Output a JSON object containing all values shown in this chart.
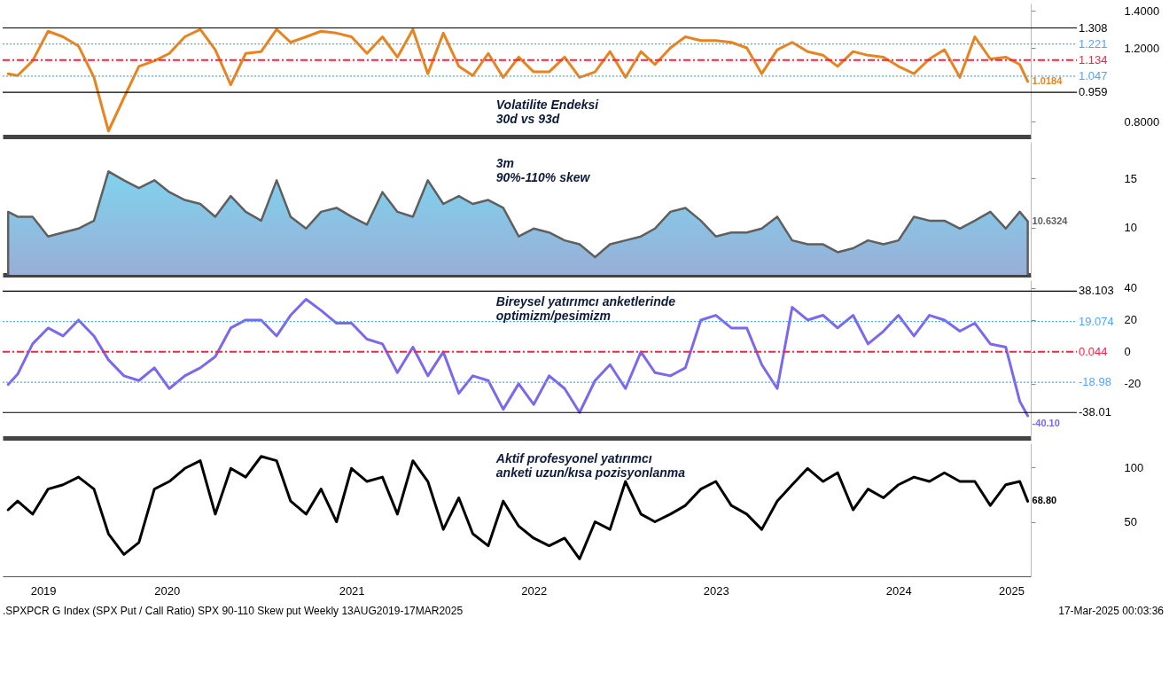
{
  "chart_data": [
    {
      "type": "line",
      "title": "Volatilite Endeksi\n30d vs 93d",
      "x": [
        "2019-08-13",
        "2019-09-01",
        "2019-10-01",
        "2019-11-01",
        "2019-12-01",
        "2020-01-01",
        "2020-02-01",
        "2020-03-01",
        "2020-04-01",
        "2020-05-01",
        "2020-06-01",
        "2020-07-01",
        "2020-08-01",
        "2020-09-01",
        "2020-10-01",
        "2020-11-01",
        "2020-12-01",
        "2021-01-01",
        "2021-02-01",
        "2021-03-01",
        "2021-04-01",
        "2021-05-01",
        "2021-06-01",
        "2021-07-01",
        "2021-08-01",
        "2021-09-01",
        "2021-10-01",
        "2021-11-01",
        "2021-12-01",
        "2022-01-01",
        "2022-02-01",
        "2022-03-01",
        "2022-04-01",
        "2022-05-01",
        "2022-06-01",
        "2022-07-01",
        "2022-08-01",
        "2022-09-01",
        "2022-10-01",
        "2022-11-01",
        "2022-12-01",
        "2023-01-01",
        "2023-02-01",
        "2023-03-01",
        "2023-04-01",
        "2023-05-01",
        "2023-06-01",
        "2023-07-01",
        "2023-08-01",
        "2023-09-01",
        "2023-10-01",
        "2023-11-01",
        "2023-12-01",
        "2024-01-01",
        "2024-02-01",
        "2024-03-01",
        "2024-04-01",
        "2024-05-01",
        "2024-06-01",
        "2024-07-01",
        "2024-08-01",
        "2024-09-01",
        "2024-10-01",
        "2024-11-01",
        "2024-12-01",
        "2025-01-01",
        "2025-02-01",
        "2025-03-01",
        "2025-03-17"
      ],
      "series": [
        {
          "color": "#e8841f",
          "values": [
            1.06,
            1.05,
            1.13,
            1.29,
            1.26,
            1.21,
            1.04,
            0.75,
            0.93,
            1.1,
            1.13,
            1.17,
            1.26,
            1.3,
            1.19,
            1.0,
            1.17,
            1.18,
            1.3,
            1.23,
            1.26,
            1.29,
            1.28,
            1.26,
            1.17,
            1.26,
            1.15,
            1.3,
            1.06,
            1.28,
            1.1,
            1.05,
            1.17,
            1.04,
            1.15,
            1.07,
            1.07,
            1.15,
            1.04,
            1.07,
            1.18,
            1.04,
            1.18,
            1.11,
            1.2,
            1.26,
            1.24,
            1.24,
            1.23,
            1.2,
            1.06,
            1.19,
            1.23,
            1.18,
            1.16,
            1.1,
            1.18,
            1.16,
            1.15,
            1.1,
            1.06,
            1.14,
            1.19,
            1.04,
            1.26,
            1.14,
            1.15,
            1.11,
            1.0184
          ]
        }
      ],
      "xlim": [
        "2019-08-02",
        "2025-03-23"
      ],
      "ylim": [
        0.72,
        1.44
      ],
      "yticks": [
        {
          "value": 0.8,
          "label": "0.8000"
        },
        {
          "value": 1.2,
          "label": "1.2000"
        },
        {
          "value": 1.4,
          "label": "1.4000"
        }
      ],
      "ref_lines": [
        {
          "axis": "y",
          "value": 1.308,
          "label": "1.308",
          "color": "#000000",
          "line_style": "solid"
        },
        {
          "axis": "y",
          "value": 1.221,
          "label": "1.221",
          "color": "#4da6ff",
          "line_style": "dotted"
        },
        {
          "axis": "y",
          "value": 1.134,
          "label": "1.134",
          "color": "#ff2040",
          "line_style": "dashed"
        },
        {
          "axis": "y",
          "value": 1.047,
          "label": "1.047",
          "color": "#4da6ff",
          "line_style": "dotted"
        },
        {
          "axis": "y",
          "value": 0.959,
          "label": "0.959",
          "color": "#000000",
          "line_style": "solid"
        }
      ],
      "annotations": [
        {
          "text": "1.0184",
          "x": "2025-03-17",
          "y": 1.0184
        }
      ],
      "tick_labels": "y",
      "grid": false,
      "legend": false,
      "marker": "none",
      "line_style": "solid"
    },
    {
      "type": "area",
      "title": "3m\n90%-110% skew",
      "x": [
        "2019-08-13",
        "2019-09-01",
        "2019-10-01",
        "2019-11-01",
        "2019-12-01",
        "2020-01-01",
        "2020-02-01",
        "2020-03-01",
        "2020-04-01",
        "2020-05-01",
        "2020-06-01",
        "2020-07-01",
        "2020-08-01",
        "2020-09-01",
        "2020-10-01",
        "2020-11-01",
        "2020-12-01",
        "2021-01-01",
        "2021-02-01",
        "2021-03-01",
        "2021-04-01",
        "2021-05-01",
        "2021-06-01",
        "2021-07-01",
        "2021-08-01",
        "2021-09-01",
        "2021-10-01",
        "2021-11-01",
        "2021-12-01",
        "2022-01-01",
        "2022-02-01",
        "2022-03-01",
        "2022-04-01",
        "2022-05-01",
        "2022-06-01",
        "2022-07-01",
        "2022-08-01",
        "2022-09-01",
        "2022-10-01",
        "2022-11-01",
        "2022-12-01",
        "2023-01-01",
        "2023-02-01",
        "2023-03-01",
        "2023-04-01",
        "2023-05-01",
        "2023-06-01",
        "2023-07-01",
        "2023-08-01",
        "2023-09-01",
        "2023-10-01",
        "2023-11-01",
        "2023-12-01",
        "2024-01-01",
        "2024-02-01",
        "2024-03-01",
        "2024-04-01",
        "2024-05-01",
        "2024-06-01",
        "2024-07-01",
        "2024-08-01",
        "2024-09-01",
        "2024-10-01",
        "2024-11-01",
        "2024-12-01",
        "2025-01-01",
        "2025-02-01",
        "2025-03-01",
        "2025-03-17"
      ],
      "series": [
        {
          "color": "#5f5f5f",
          "values": [
            11.6,
            11.1,
            11.1,
            9.1,
            9.5,
            9.9,
            10.7,
            15.7,
            14.8,
            14.0,
            14.8,
            13.6,
            12.8,
            12.4,
            11.1,
            13.2,
            11.6,
            10.7,
            14.8,
            11.1,
            9.9,
            11.6,
            12.0,
            11.1,
            10.3,
            13.6,
            11.6,
            11.1,
            14.8,
            12.4,
            13.2,
            12.4,
            12.8,
            12.0,
            9.1,
            9.9,
            9.5,
            8.7,
            8.3,
            7.0,
            8.3,
            8.7,
            9.1,
            9.9,
            11.6,
            12.0,
            10.7,
            9.1,
            9.5,
            9.5,
            9.9,
            11.1,
            8.7,
            8.3,
            8.3,
            7.5,
            7.9,
            8.7,
            8.3,
            8.7,
            11.1,
            10.7,
            10.7,
            9.9,
            10.7,
            11.6,
            9.9,
            11.6,
            10.6324
          ]
        }
      ],
      "xlim": [
        "2019-08-02",
        "2025-03-23"
      ],
      "ylim": [
        5.2,
        18.7
      ],
      "yticks": [
        10,
        15
      ],
      "annotations": [
        {
          "text": "10.6324",
          "x": "2025-03-17",
          "y": 10.6324
        }
      ],
      "tick_labels": "y",
      "grid": false,
      "legend": false,
      "marker": "none"
    },
    {
      "type": "line",
      "title": "Bireysel yatırımcı anketlerinde\noptimizm/pesimizm",
      "x": [
        "2019-08-13",
        "2019-09-01",
        "2019-10-01",
        "2019-11-01",
        "2019-12-01",
        "2020-01-01",
        "2020-02-01",
        "2020-03-01",
        "2020-04-01",
        "2020-05-01",
        "2020-06-01",
        "2020-07-01",
        "2020-08-01",
        "2020-09-01",
        "2020-10-01",
        "2020-11-01",
        "2020-12-01",
        "2021-01-01",
        "2021-02-01",
        "2021-03-01",
        "2021-04-01",
        "2021-05-01",
        "2021-06-01",
        "2021-07-01",
        "2021-08-01",
        "2021-09-01",
        "2021-10-01",
        "2021-11-01",
        "2021-12-01",
        "2022-01-01",
        "2022-02-01",
        "2022-03-01",
        "2022-04-01",
        "2022-05-01",
        "2022-06-01",
        "2022-07-01",
        "2022-08-01",
        "2022-09-01",
        "2022-10-01",
        "2022-11-01",
        "2022-12-01",
        "2023-01-01",
        "2023-02-01",
        "2023-03-01",
        "2023-04-01",
        "2023-05-01",
        "2023-06-01",
        "2023-07-01",
        "2023-08-01",
        "2023-09-01",
        "2023-10-01",
        "2023-11-01",
        "2023-12-01",
        "2024-01-01",
        "2024-02-01",
        "2024-03-01",
        "2024-04-01",
        "2024-05-01",
        "2024-06-01",
        "2024-07-01",
        "2024-08-01",
        "2024-09-01",
        "2024-10-01",
        "2024-11-01",
        "2024-12-01",
        "2025-01-01",
        "2025-02-01",
        "2025-03-01",
        "2025-03-17"
      ],
      "series": [
        {
          "color": "#7b68ee",
          "values": [
            -20.5,
            -14,
            5,
            15,
            10,
            20,
            10,
            -5,
            -15,
            -18,
            -10,
            -23,
            -15,
            -10,
            -3,
            15,
            20,
            20,
            10,
            23,
            33,
            26,
            18,
            18,
            8,
            5,
            -13,
            3,
            -15,
            0,
            -26,
            -15,
            -18,
            -36,
            -20,
            -33,
            -15,
            -23,
            -38,
            -18,
            -8,
            -23,
            0,
            -13,
            -15,
            -10,
            20,
            23,
            15,
            15,
            -8,
            -23,
            28,
            20,
            23,
            15,
            23,
            5,
            13,
            23,
            10,
            23,
            20,
            13,
            18,
            5,
            3,
            -31,
            -40.1
          ]
        }
      ],
      "xlim": [
        "2019-08-02",
        "2025-03-23"
      ],
      "ylim": [
        -54,
        45
      ],
      "yticks": [
        -20,
        0,
        20,
        40
      ],
      "ref_lines": [
        {
          "axis": "y",
          "value": 38.103,
          "label": "38.103",
          "color": "#000000",
          "line_style": "solid"
        },
        {
          "axis": "y",
          "value": 19.074,
          "label": "19.074",
          "color": "#4da6ff",
          "line_style": "dotted"
        },
        {
          "axis": "y",
          "value": 0.044,
          "label": "0.044",
          "color": "#ff2040",
          "line_style": "dashed"
        },
        {
          "axis": "y",
          "value": -18.98,
          "label": "-18.98",
          "color": "#4da6ff",
          "line_style": "dotted"
        },
        {
          "axis": "y",
          "value": -38.01,
          "label": "-38.01",
          "color": "#000000",
          "line_style": "solid"
        }
      ],
      "annotations": [
        {
          "text": "-40.10",
          "x": "2025-03-17",
          "y": -40.1
        }
      ],
      "tick_labels": "y",
      "grid": false,
      "legend": false,
      "marker": "none",
      "line_style": "solid"
    },
    {
      "type": "line",
      "title": "Aktif profesyonel yatırımcı\nanketi uzun/kısa pozisyonlanma",
      "x": [
        "2019-08-13",
        "2019-09-01",
        "2019-10-01",
        "2019-11-01",
        "2019-12-01",
        "2020-01-01",
        "2020-02-01",
        "2020-03-01",
        "2020-04-01",
        "2020-05-01",
        "2020-06-01",
        "2020-07-01",
        "2020-08-01",
        "2020-09-01",
        "2020-10-01",
        "2020-11-01",
        "2020-12-01",
        "2021-01-01",
        "2021-02-01",
        "2021-03-01",
        "2021-04-01",
        "2021-05-01",
        "2021-06-01",
        "2021-07-01",
        "2021-08-01",
        "2021-09-01",
        "2021-10-01",
        "2021-11-01",
        "2021-12-01",
        "2022-01-01",
        "2022-02-01",
        "2022-03-01",
        "2022-04-01",
        "2022-05-01",
        "2022-06-01",
        "2022-07-01",
        "2022-08-01",
        "2022-09-01",
        "2022-10-01",
        "2022-11-01",
        "2022-12-01",
        "2023-01-01",
        "2023-02-01",
        "2023-03-01",
        "2023-04-01",
        "2023-05-01",
        "2023-06-01",
        "2023-07-01",
        "2023-08-01",
        "2023-09-01",
        "2023-10-01",
        "2023-11-01",
        "2023-12-01",
        "2024-01-01",
        "2024-02-01",
        "2024-03-01",
        "2024-04-01",
        "2024-05-01",
        "2024-06-01",
        "2024-07-01",
        "2024-08-01",
        "2024-09-01",
        "2024-10-01",
        "2024-11-01",
        "2024-12-01",
        "2025-01-01",
        "2025-02-01",
        "2025-03-01",
        "2025-03-17"
      ],
      "series": [
        {
          "color": "#000000",
          "values": [
            61,
            69,
            57,
            80,
            84,
            91,
            80,
            39,
            20,
            31,
            80,
            87,
            99,
            106,
            57,
            99,
            91,
            110,
            106,
            69,
            57,
            80,
            50,
            99,
            87,
            91,
            57,
            106,
            87,
            43,
            72,
            39,
            28,
            69,
            46,
            35,
            28,
            35,
            16,
            50,
            43,
            87,
            57,
            50,
            57,
            65,
            80,
            87,
            65,
            57,
            43,
            69,
            84,
            99,
            87,
            95,
            61,
            80,
            72,
            84,
            91,
            87,
            95,
            87,
            87,
            65,
            84,
            87,
            68.8
          ]
        }
      ],
      "xlim": [
        "2019-08-02",
        "2025-03-23"
      ],
      "ylim": [
        0,
        122
      ],
      "yticks": [
        50,
        100
      ],
      "xticks": [
        {
          "value": "2019-10-22",
          "label": "2019"
        },
        {
          "value": "2020-06-26",
          "label": "2020"
        },
        {
          "value": "2021-07-01",
          "label": "2021"
        },
        {
          "value": "2022-07-01",
          "label": "2022"
        },
        {
          "value": "2023-07-01",
          "label": "2023"
        },
        {
          "value": "2024-07-01",
          "label": "2024"
        },
        {
          "value": "2025-02-12",
          "label": "2025"
        }
      ],
      "annotations": [
        {
          "text": "68.80",
          "x": "2025-03-17",
          "y": 68.8
        },
        ".SPXPCR G Index (SPX Put / Call Ratio) SPX 90-110 Skew put  Weekly 13AUG2019-17MAR2025",
        "17-Mar-2025 00:03:36"
      ],
      "grid": false,
      "legend": false,
      "marker": "none",
      "line_style": "solid"
    }
  ]
}
